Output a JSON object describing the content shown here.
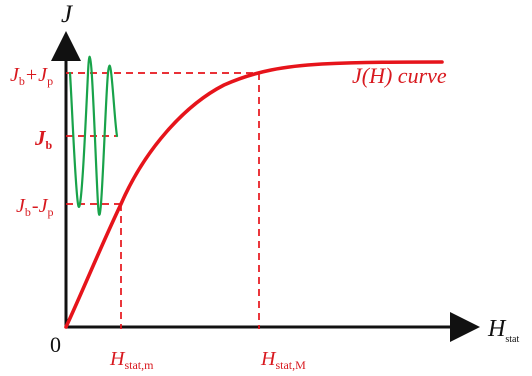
{
  "axes": {
    "y_label": "J",
    "x_label": "H",
    "x_label_subscript": "stat",
    "origin_label": "0"
  },
  "levels": {
    "upper": {
      "base": "J",
      "base_sub": "b",
      "op": "+",
      "term": "J",
      "term_sub": "p"
    },
    "middle": {
      "base": "J",
      "base_sub": "b"
    },
    "lower": {
      "base": "J",
      "base_sub": "b",
      "op": "-",
      "term": "J",
      "term_sub": "p"
    }
  },
  "curve_label": "J(H) curve",
  "markers": {
    "h_min": {
      "base": "H",
      "sub": "stat,m"
    },
    "h_max": {
      "base": "H",
      "sub": "stat,M"
    }
  },
  "colors": {
    "axis": "#111111",
    "curve": "#e6141b",
    "signal": "#18a34a",
    "label": "#d8191f"
  },
  "icons": {
    "y_arrow": "arrow-up-icon",
    "x_arrow": "arrow-right-icon"
  }
}
